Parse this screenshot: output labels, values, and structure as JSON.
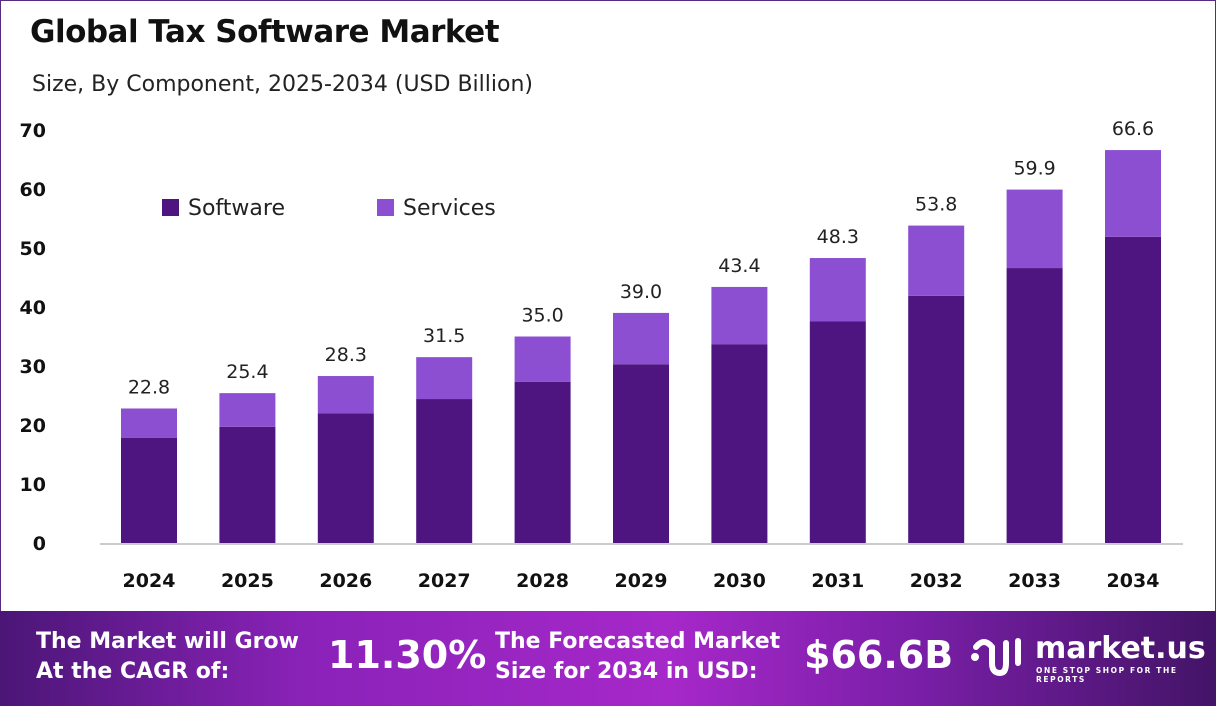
{
  "chart_data": {
    "type": "bar",
    "stacked": true,
    "title": "Global Tax Software Market",
    "subtitle": "Size, By Component, 2025-2034 (USD Billion)",
    "categories": [
      "2024",
      "2025",
      "2026",
      "2027",
      "2028",
      "2029",
      "2030",
      "2031",
      "2032",
      "2033",
      "2034"
    ],
    "series": [
      {
        "name": "Software",
        "color": "#4e1580",
        "values": [
          17.8,
          19.7,
          22.0,
          24.4,
          27.3,
          30.3,
          33.7,
          37.6,
          41.9,
          46.6,
          51.9
        ]
      },
      {
        "name": "Services",
        "color": "#8c4fd1",
        "values": [
          5.0,
          5.7,
          6.3,
          7.1,
          7.7,
          8.7,
          9.7,
          10.7,
          11.9,
          13.3,
          14.7
        ]
      }
    ],
    "totals": [
      "22.8",
      "25.4",
      "28.3",
      "31.5",
      "35.0",
      "39.0",
      "43.4",
      "48.3",
      "53.8",
      "59.9",
      "66.6"
    ],
    "yticks": [
      "0",
      "10",
      "20",
      "30",
      "40",
      "50",
      "60",
      "70"
    ],
    "ylim": [
      0,
      70
    ],
    "grid": false,
    "legend_position": "top-left"
  },
  "footer": {
    "cagr_label_1": "The Market will Grow",
    "cagr_label_2": "At the CAGR of:",
    "cagr_value": "11.30%",
    "forecast_label_1": "The Forecasted Market",
    "forecast_label_2": "Size for 2034 in USD:",
    "forecast_value": "$66.6B",
    "brand": "market.us",
    "tagline": "ONE STOP SHOP FOR THE REPORTS"
  }
}
